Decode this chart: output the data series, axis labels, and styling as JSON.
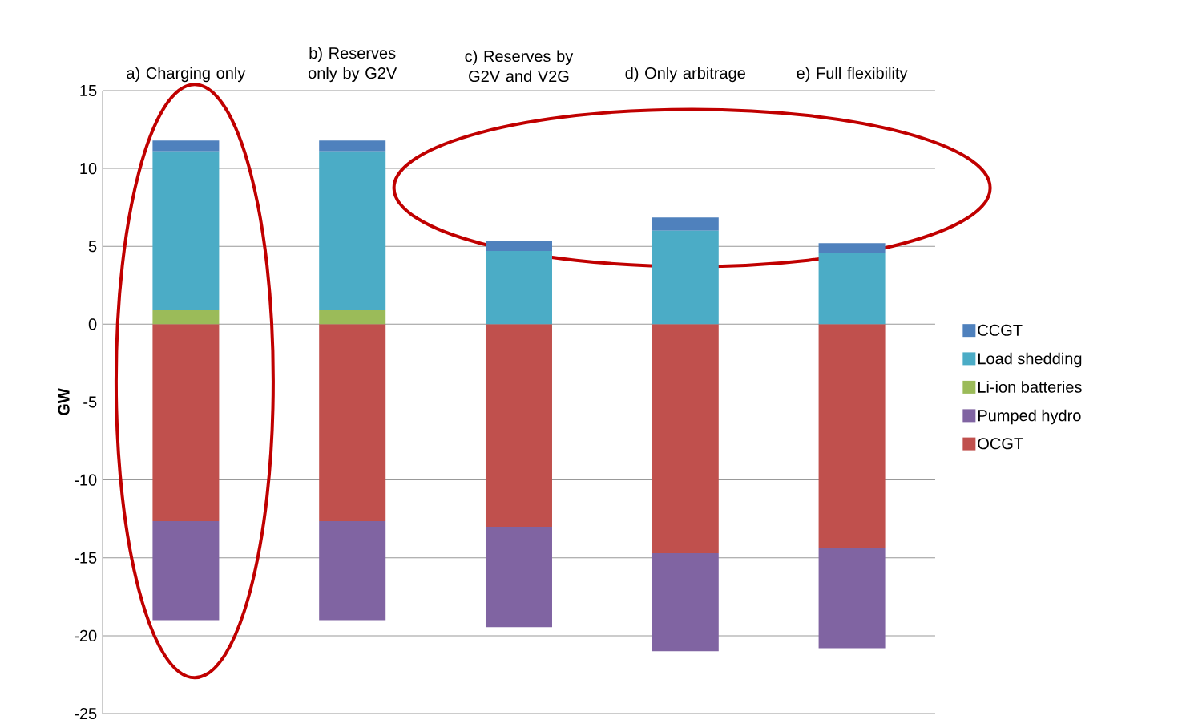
{
  "chart_data": {
    "type": "bar",
    "stacked": true,
    "ylabel": "GW",
    "categories": [
      "a) Charging only",
      "b) Reserves only by G2V",
      "c) Reserves by G2V and V2G",
      "d) Only arbitrage",
      "e) Full flexibility"
    ],
    "series": [
      {
        "name": "OCGT",
        "color": "#c0504d",
        "values": [
          -12.65,
          -12.65,
          -13.0,
          -14.7,
          -14.4
        ]
      },
      {
        "name": "Pumped hydro",
        "color": "#8064a2",
        "values": [
          -6.35,
          -6.35,
          -6.45,
          -6.3,
          -6.4
        ]
      },
      {
        "name": "Li-ion batteries",
        "color": "#9bbb59",
        "values": [
          0.9,
          0.9,
          0,
          0,
          0
        ]
      },
      {
        "name": "Load shedding",
        "color": "#4bacc6",
        "values": [
          10.2,
          10.2,
          4.7,
          6.0,
          4.6
        ]
      },
      {
        "name": "CCGT",
        "color": "#4f81bd",
        "values": [
          0.7,
          0.7,
          0.65,
          0.85,
          0.6
        ]
      }
    ],
    "ylim": [
      -25,
      15
    ],
    "yticks": [
      -25,
      -20,
      -15,
      -10,
      -5,
      0,
      5,
      10,
      15
    ],
    "grid": "y",
    "legend": "right"
  }
}
